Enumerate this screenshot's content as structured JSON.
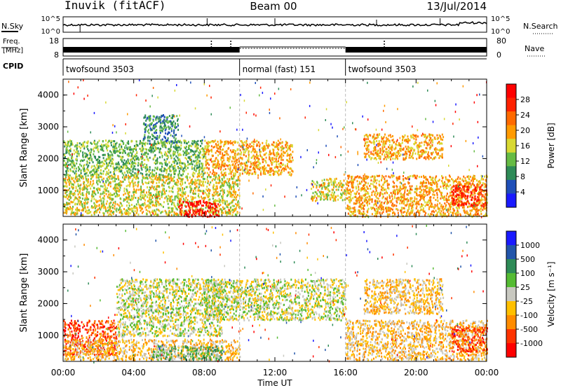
{
  "header": {
    "title_left": "Inuvik (fitACF)",
    "title_center": "Beam 00",
    "title_right": "13/Jul/2014"
  },
  "strips": {
    "nsky_label": "N.Sky",
    "nsearch_label": "N.Search",
    "nsky_ticks": [
      "10^5",
      "10^0"
    ],
    "nsearch_ticks": [
      "10^5",
      "10^0"
    ],
    "freq_label_1": "Freq.",
    "freq_label_2": "[MHz]",
    "freq_ticks": [
      "18",
      "8"
    ],
    "nave_label": "Nave",
    "nave_ticks": [
      "80",
      "0"
    ],
    "cpid_label": "CPID",
    "cpid_segments": [
      {
        "label": "twofsound 3503",
        "start_h": 0,
        "end_h": 10
      },
      {
        "label": "normal (fast) 151",
        "start_h": 10,
        "end_h": 16
      },
      {
        "label": "twofsound 3503",
        "start_h": 16,
        "end_h": 24
      }
    ]
  },
  "colors": {
    "power": [
      "#1a1aff",
      "#1f4fb8",
      "#2e8b57",
      "#66bb44",
      "#d8d832",
      "#ff9a00",
      "#ff6a00",
      "#ff2200",
      "#ff0000"
    ],
    "velocity": [
      "#1a1aff",
      "#2255aa",
      "#2e8b57",
      "#55bb33",
      "#c8c8c0",
      "#ffc000",
      "#ff8c00",
      "#ff3300",
      "#ff0000"
    ]
  },
  "chart_data": [
    {
      "type": "heatmap",
      "name": "Power panel",
      "xlabel": "Time UT",
      "ylabel": "Slant Range [km]",
      "xlim": [
        0,
        24
      ],
      "ylim": [
        180,
        4500
      ],
      "xticks": [
        "00:00",
        "04:00",
        "08:00",
        "12:00",
        "16:00",
        "20:00",
        "00:00"
      ],
      "yticks": [
        "1000",
        "2000",
        "3000",
        "4000"
      ],
      "colorbar": {
        "label": "Power [dB]",
        "ticks": [
          "4",
          "8",
          "12",
          "16",
          "20",
          "24",
          "28"
        ],
        "range": [
          0,
          30
        ]
      },
      "regions": [
        {
          "t0": 0,
          "t1": 10,
          "r0": 250,
          "r1": 1500,
          "level": 16
        },
        {
          "t0": 6.5,
          "t1": 8.8,
          "r0": 200,
          "r1": 700,
          "level": 29
        },
        {
          "t0": 0,
          "t1": 8,
          "r0": 1500,
          "r1": 2600,
          "level": 12
        },
        {
          "t0": 4.5,
          "t1": 6.5,
          "r0": 2500,
          "r1": 3400,
          "level": 8
        },
        {
          "t0": 8,
          "t1": 13,
          "r0": 1500,
          "r1": 2600,
          "level": 20
        },
        {
          "t0": 14,
          "t1": 16,
          "r0": 700,
          "r1": 1400,
          "level": 14
        },
        {
          "t0": 16,
          "t1": 24,
          "r0": 200,
          "r1": 1500,
          "level": 18
        },
        {
          "t0": 22,
          "t1": 24,
          "r0": 500,
          "r1": 1200,
          "level": 27
        },
        {
          "t0": 17,
          "t1": 21.5,
          "r0": 2000,
          "r1": 2800,
          "level": 18
        }
      ]
    },
    {
      "type": "heatmap",
      "name": "Velocity panel",
      "xlabel": "Time UT",
      "ylabel": "Slant Range [km]",
      "xlim": [
        0,
        24
      ],
      "ylim": [
        180,
        4500
      ],
      "xticks": [
        "00:00",
        "04:00",
        "08:00",
        "12:00",
        "16:00",
        "20:00",
        "00:00"
      ],
      "yticks": [
        "1000",
        "2000",
        "3000",
        "4000"
      ],
      "colorbar": {
        "label": "Velocity [m s⁻¹]",
        "ticks": [
          "1000",
          "500",
          "100",
          "25",
          "-25",
          "-100",
          "-500",
          "-1000"
        ],
        "range": [
          -1000,
          1000
        ]
      },
      "regions": [
        {
          "t0": 0,
          "t1": 3,
          "r0": 400,
          "r1": 1500,
          "level": -700
        },
        {
          "t0": 0,
          "t1": 10,
          "r0": 250,
          "r1": 900,
          "level": -150
        },
        {
          "t0": 3,
          "t1": 9,
          "r0": 1000,
          "r1": 2800,
          "level": 0
        },
        {
          "t0": 5,
          "t1": 9,
          "r0": 250,
          "r1": 700,
          "level": 200
        },
        {
          "t0": 8,
          "t1": 16,
          "r0": 1500,
          "r1": 2800,
          "level": 0
        },
        {
          "t0": 16,
          "t1": 24,
          "r0": 250,
          "r1": 1500,
          "level": -300
        },
        {
          "t0": 22,
          "t1": 24,
          "r0": 500,
          "r1": 1300,
          "level": -800
        },
        {
          "t0": 17,
          "t1": 21.5,
          "r0": 1700,
          "r1": 2800,
          "level": -250
        }
      ]
    }
  ]
}
